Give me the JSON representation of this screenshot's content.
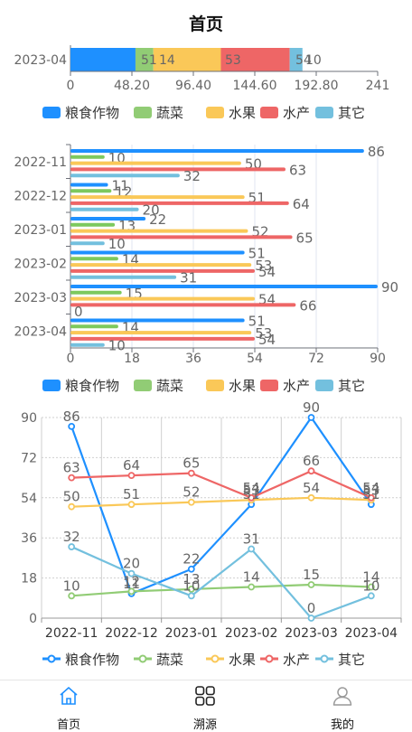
{
  "header": {
    "title": "首页"
  },
  "tabs": [
    {
      "label": "首页",
      "icon": "home-icon",
      "active": true
    },
    {
      "label": "溯源",
      "icon": "grid-icon",
      "active": false
    },
    {
      "label": "我的",
      "icon": "user-icon",
      "active": false
    }
  ],
  "colors": [
    "#1e90ff",
    "#91cc75",
    "#fac858",
    "#ee6666",
    "#73c0de"
  ],
  "chart_data": [
    {
      "type": "stacked-bar",
      "orientation": "horizontal",
      "categories": [
        "2023-04"
      ],
      "series": [
        {
          "name": "粮食作物",
          "values": [
            51
          ]
        },
        {
          "name": "蔬菜",
          "values": [
            14
          ]
        },
        {
          "name": "水果",
          "values": [
            53
          ]
        },
        {
          "name": "水产",
          "values": [
            54
          ]
        },
        {
          "name": "其它",
          "values": [
            10
          ]
        }
      ],
      "visible_labels": [
        "51",
        "14",
        "53",
        "54",
        "10"
      ],
      "xticks": [
        "0",
        "48.20",
        "96.40",
        "144.60",
        "192.80",
        "241"
      ],
      "xlim": [
        0,
        241
      ],
      "legend": "bottom"
    },
    {
      "type": "bar",
      "orientation": "horizontal",
      "categories": [
        "2022-11",
        "2022-12",
        "2023-01",
        "2023-02",
        "2023-03",
        "2023-04"
      ],
      "series": [
        {
          "name": "粮食作物",
          "values": [
            86,
            11,
            22,
            51,
            90,
            51
          ]
        },
        {
          "name": "蔬菜",
          "values": [
            10,
            12,
            13,
            14,
            15,
            14
          ]
        },
        {
          "name": "水果",
          "values": [
            50,
            51,
            52,
            53,
            54,
            53
          ]
        },
        {
          "name": "水产",
          "values": [
            63,
            64,
            65,
            54,
            66,
            54
          ]
        },
        {
          "name": "其它",
          "values": [
            32,
            20,
            10,
            31,
            0,
            10
          ]
        }
      ],
      "xticks": [
        "0",
        "18",
        "36",
        "54",
        "72",
        "90"
      ],
      "xlim": [
        0,
        90
      ],
      "legend": "bottom"
    },
    {
      "type": "line",
      "x": [
        "2022-11",
        "2022-12",
        "2023-01",
        "2023-02",
        "2023-03",
        "2023-04"
      ],
      "series": [
        {
          "name": "粮食作物",
          "values": [
            86,
            11,
            22,
            51,
            90,
            51
          ]
        },
        {
          "name": "蔬菜",
          "values": [
            10,
            12,
            13,
            14,
            15,
            14
          ]
        },
        {
          "name": "水果",
          "values": [
            50,
            51,
            52,
            53,
            54,
            53
          ]
        },
        {
          "name": "水产",
          "values": [
            63,
            64,
            65,
            54,
            66,
            54
          ]
        },
        {
          "name": "其它",
          "values": [
            32,
            20,
            10,
            31,
            0,
            10
          ]
        }
      ],
      "yticks": [
        "0",
        "18",
        "36",
        "54",
        "72",
        "90"
      ],
      "ylim": [
        0,
        90
      ],
      "legend": "bottom",
      "grid": true
    }
  ]
}
